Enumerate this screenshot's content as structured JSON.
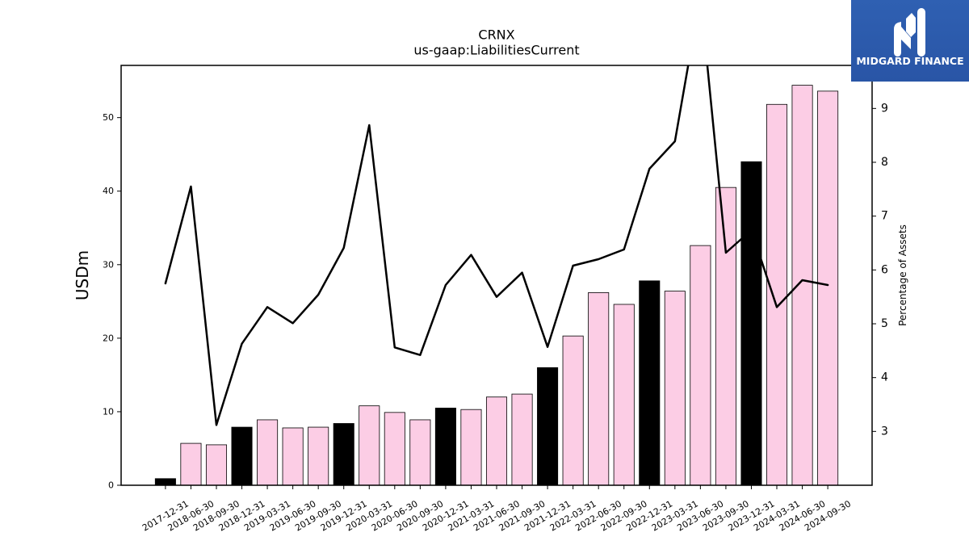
{
  "logo": {
    "text": "MIDGARD FINANCE",
    "background": "#2b5aab",
    "icon": "midgard-logo-icon"
  },
  "chart_data": {
    "type": "bar",
    "title": "CRNX",
    "subtitle": "us-gaap:LiabilitiesCurrent",
    "xlabel": "",
    "ylabel": "USDm",
    "y2label": "Percentage of Assets",
    "categories": [
      "2017-12-31",
      "2018-06-30",
      "2018-09-30",
      "2018-12-31",
      "2019-03-31",
      "2019-06-30",
      "2019-09-30",
      "2019-12-31",
      "2020-03-31",
      "2020-06-30",
      "2020-09-30",
      "2020-12-31",
      "2021-03-31",
      "2021-06-30",
      "2021-09-30",
      "2021-12-31",
      "2022-03-31",
      "2022-06-30",
      "2022-09-30",
      "2022-12-31",
      "2023-03-31",
      "2023-06-30",
      "2023-09-30",
      "2023-12-31",
      "2024-03-31",
      "2024-06-30",
      "2024-09-30"
    ],
    "ylim": [
      0,
      57.1
    ],
    "y2lim": [
      2.0,
      9.8
    ],
    "yticks": [
      0,
      10,
      20,
      30,
      40,
      50
    ],
    "y2ticks": [
      3,
      4,
      5,
      6,
      7,
      8,
      9
    ],
    "series": [
      {
        "type": "bar",
        "axis": "left",
        "values": [
          0.9,
          5.7,
          5.5,
          7.9,
          8.9,
          7.8,
          7.9,
          8.4,
          10.8,
          9.9,
          8.9,
          10.5,
          10.3,
          12.0,
          12.4,
          16.0,
          20.3,
          26.2,
          24.6,
          27.8,
          26.4,
          32.6,
          40.5,
          44.0,
          51.8,
          54.4,
          53.6
        ]
      },
      {
        "type": "line",
        "axis": "right",
        "values": [
          5.75,
          7.55,
          3.12,
          4.63,
          5.31,
          5.01,
          5.54,
          6.41,
          8.69,
          4.56,
          4.42,
          5.72,
          6.28,
          5.5,
          5.95,
          4.57,
          6.08,
          6.2,
          6.38,
          7.88,
          8.39,
          11.1,
          6.32,
          6.74,
          5.31,
          5.81,
          5.72
        ]
      }
    ],
    "highlighted_categories": [
      "2017-12-31",
      "2018-12-31",
      "2019-12-31",
      "2020-12-31",
      "2021-12-31",
      "2022-12-31",
      "2023-12-31"
    ],
    "colors": {
      "bar": "#fccde5",
      "highlight_bar": "#000000",
      "line": "#000000"
    },
    "grid": false,
    "legend": false
  }
}
